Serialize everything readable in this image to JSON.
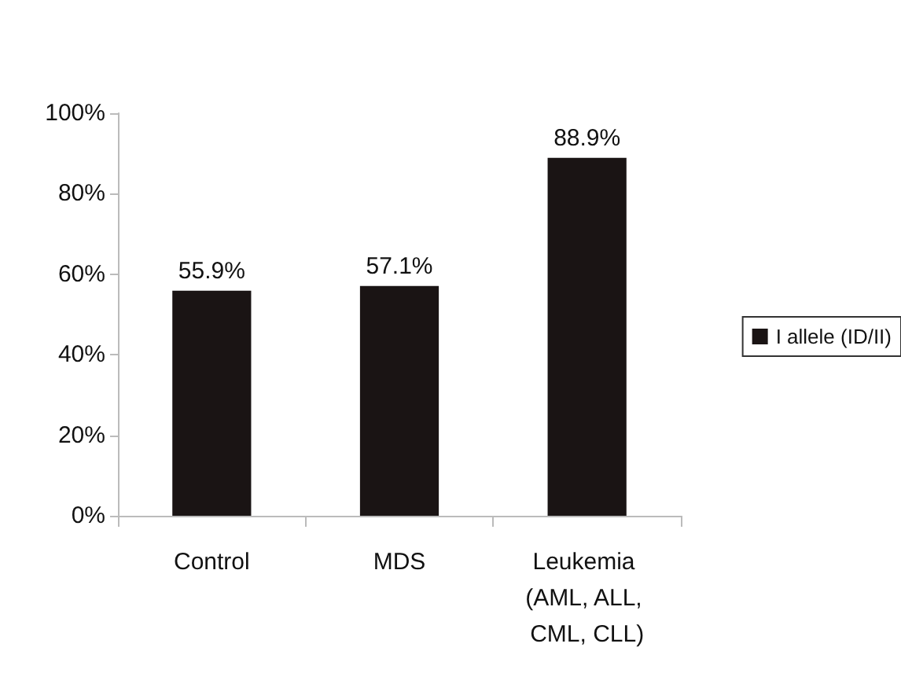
{
  "chart_data": {
    "type": "bar",
    "categories": [
      "Control",
      "MDS",
      "Leukemia (AML, ALL, CML, CLL)"
    ],
    "series": [
      {
        "name": "I allele (ID/II)",
        "color": "#1a1414",
        "values": [
          55.9,
          57.1,
          88.9
        ],
        "value_labels": [
          "55.9%",
          "57.1%",
          "88.9%"
        ]
      }
    ],
    "ylim": [
      0,
      100
    ],
    "yticks": [
      {
        "value": 0,
        "label": "0%"
      },
      {
        "value": 20,
        "label": "20%"
      },
      {
        "value": 40,
        "label": "40%"
      },
      {
        "value": 60,
        "label": "60%"
      },
      {
        "value": 80,
        "label": "80%"
      },
      {
        "value": 100,
        "label": "100%"
      }
    ],
    "grid": false,
    "legend": "right"
  }
}
